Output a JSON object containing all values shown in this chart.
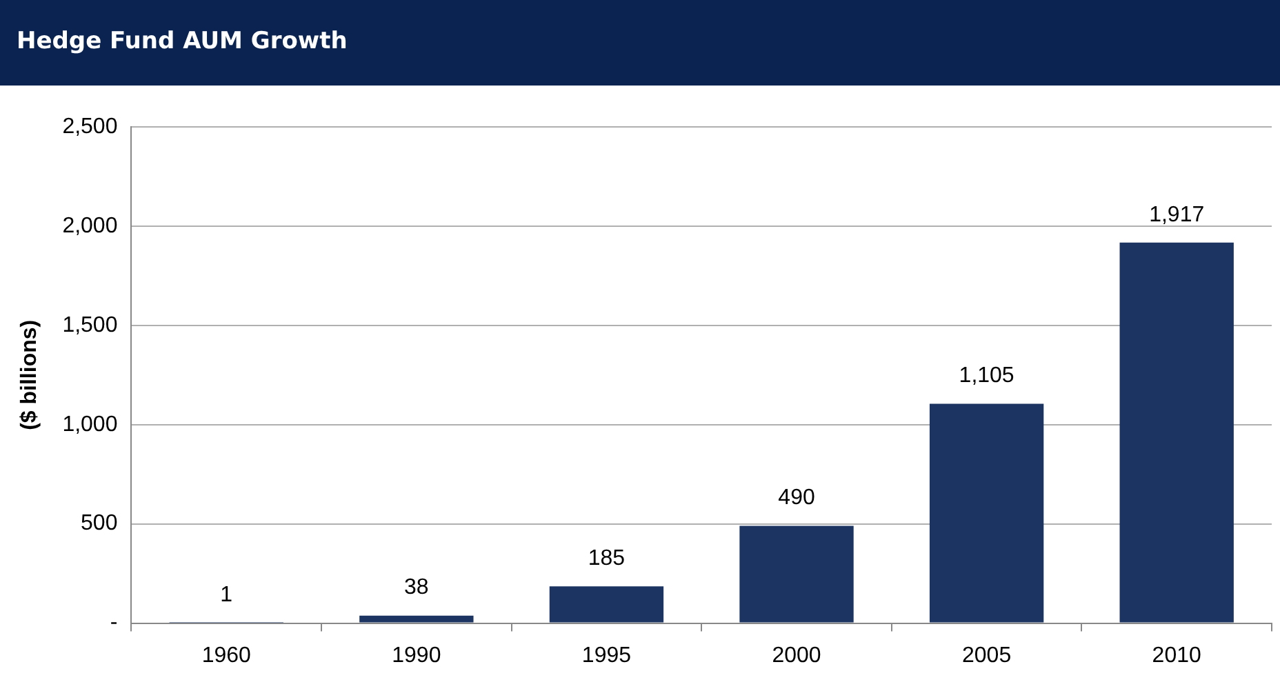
{
  "chart_data": {
    "type": "bar",
    "title": "Hedge Fund AUM Growth",
    "ylabel": "($ billions)",
    "categories": [
      "1960",
      "1990",
      "1995",
      "2000",
      "2005",
      "2010"
    ],
    "values": [
      1,
      38,
      185,
      490,
      1105,
      1917
    ],
    "value_labels": [
      "1",
      "38",
      "185",
      "490",
      "1,105",
      "1,917"
    ],
    "color": "#1c3461",
    "ylim": [
      0,
      2500
    ],
    "yticks": [
      {
        "value": 0,
        "label": "-"
      },
      500,
      {
        "value": 1000,
        "label": "1,000"
      },
      {
        "value": 1500,
        "label": "1,500"
      },
      {
        "value": 2000,
        "label": "2,000"
      },
      {
        "value": 2500,
        "label": "2,500"
      }
    ],
    "grid": "y",
    "legend": false
  }
}
